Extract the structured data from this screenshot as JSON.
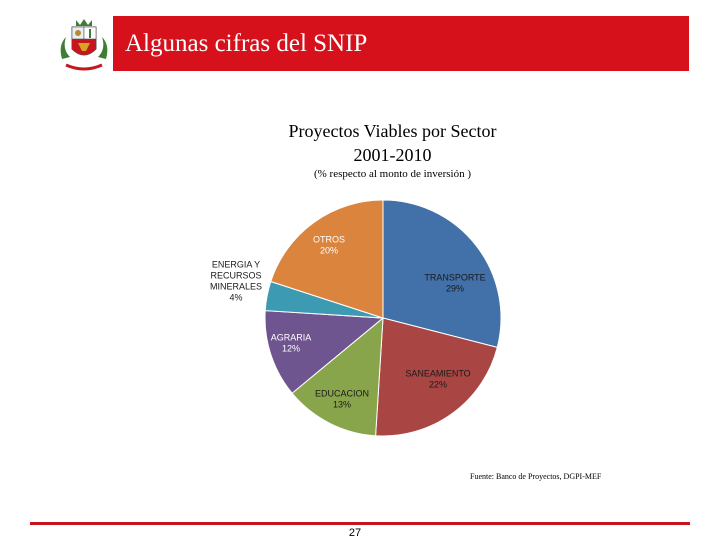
{
  "header": {
    "title": "Algunas cifras del SNIP",
    "accent_color": "#d6111b",
    "logo_icon": "peru-coat-of-arms-icon"
  },
  "chart_data": {
    "type": "pie",
    "title": "Proyectos Viables por Sector",
    "subtitle": "2001-2010",
    "caption": "(% respecto al monto de inversión )",
    "unit": "%",
    "slices": [
      {
        "label": "TRANSPORTE",
        "value": 29,
        "value_label": "29%",
        "color": "#4270a8"
      },
      {
        "label": "SANEAMIENTO",
        "value": 22,
        "value_label": "22%",
        "color": "#a94543"
      },
      {
        "label": "EDUCACION",
        "value": 13,
        "value_label": "13%",
        "color": "#89a54c"
      },
      {
        "label": "AGRARIA",
        "value": 12,
        "value_label": "12%",
        "color": "#6f558f"
      },
      {
        "label": "ENERGIA Y RECURSOS MINERALES",
        "label_lines": [
          "ENERGIA Y",
          "RECURSOS",
          "MINERALES"
        ],
        "value": 4,
        "value_label": "4%",
        "color": "#3c9ab2"
      },
      {
        "label": "OTROS",
        "value": 20,
        "value_label": "20%",
        "color": "#db843d"
      }
    ],
    "start_angle": "top, clockwise",
    "legend": "none"
  },
  "source": "Fuente: Banco de Proyectos, DGPI-MEF",
  "footer": {
    "page_number": "27"
  }
}
